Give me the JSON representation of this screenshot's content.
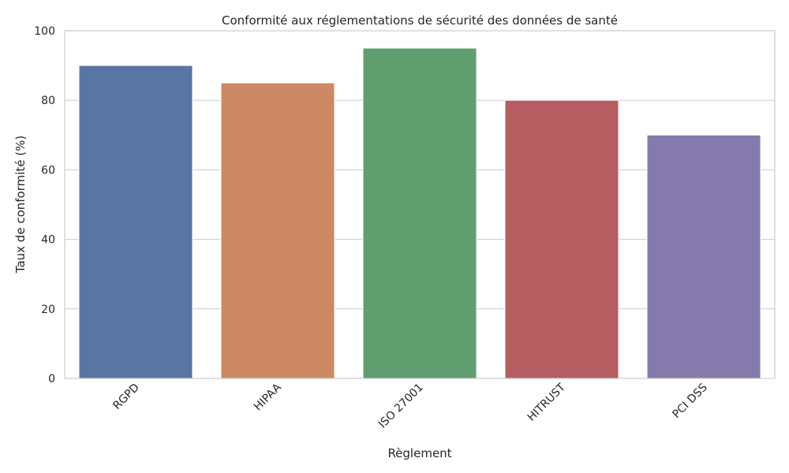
{
  "chart_data": {
    "type": "bar",
    "title": "Conformité aux réglementations de sécurité des données de santé",
    "xlabel": "Règlement",
    "ylabel": "Taux de conformité (%)",
    "categories": [
      "RGPD",
      "HIPAA",
      "ISO 27001",
      "HITRUST",
      "PCI DSS"
    ],
    "values": [
      90,
      85,
      95,
      80,
      70
    ],
    "colors": [
      "#5875a4",
      "#cc8963",
      "#5f9e6e",
      "#b55d60",
      "#857aab"
    ],
    "ylim": [
      0,
      100
    ],
    "yticks": [
      0,
      20,
      40,
      60,
      80,
      100
    ],
    "grid": "horizontal",
    "x_tick_rotation": 45
  }
}
